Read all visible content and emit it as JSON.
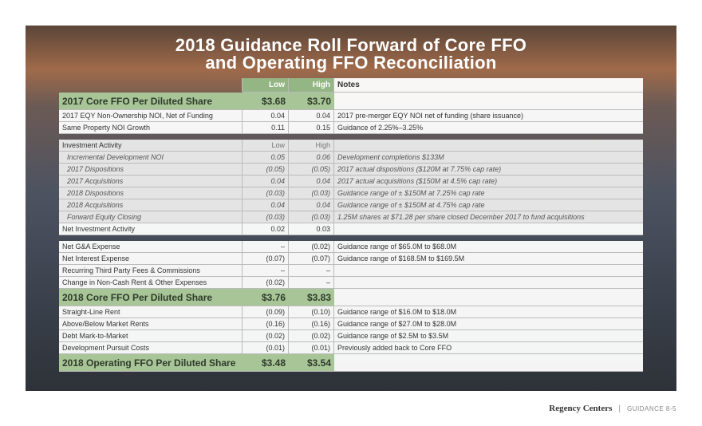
{
  "title_lines": [
    "2018 Guidance Roll Forward of Core FFO",
    "and Operating FFO Reconciliation"
  ],
  "table": {
    "columns": [
      "Low",
      "High",
      "Notes"
    ],
    "groups": [
      [
        {
          "label": "2017 Core FFO Per Diluted Share",
          "low": "$3.68",
          "high": "$3.70"
        },
        {
          "label": "2017 EQY Non-Ownership NOI, Net of Funding",
          "low": "0.04",
          "high": "0.04",
          "notes": "2017 pre-merger EQY NOI net of funding (share issuance)"
        },
        {
          "label": "Same Property NOI Growth",
          "low": "0.11",
          "high": "0.15",
          "notes": "Guidance of 2.25%–3.25%"
        }
      ],
      [
        {
          "label": "Investment Activity",
          "low": "Low",
          "high": "High"
        },
        {
          "label": "Incremental Development NOI",
          "low": "0.05",
          "high": "0.06",
          "notes": "Development completions $133M"
        },
        {
          "label": "2017 Dispositions",
          "low": "(0.05)",
          "high": "(0.05)",
          "notes": "2017 actual dispositions ($120M at 7.75% cap rate)"
        },
        {
          "label": "2017 Acquisitions",
          "low": "0.04",
          "high": "0.04",
          "notes": "2017 actual acquisitions ($150M at 4.5% cap rate)"
        },
        {
          "label": "2018 Dispositions",
          "low": "(0.03)",
          "high": "(0.03)",
          "notes": "Guidance range of ± $150M at 7.25% cap rate"
        },
        {
          "label": "2018 Acquisitions",
          "low": "0.04",
          "high": "0.04",
          "notes": "Guidance range of ± $150M at 4.75% cap rate"
        },
        {
          "label": "Forward Equity Closing",
          "low": "(0.03)",
          "high": "(0.03)",
          "notes": "1.25M shares at $71.28 per share closed December 2017 to fund acquisitions"
        },
        {
          "label": "Net Investment Activity",
          "low": "0.02",
          "high": "0.03"
        }
      ],
      [
        {
          "label": "Net G&A Expense",
          "low": "–",
          "high": "(0.02)",
          "notes": "Guidance range of $65.0M to $68.0M"
        },
        {
          "label": "Net Interest Expense",
          "low": "(0.07)",
          "high": "(0.07)",
          "notes": "Guidance range of $168.5M to $169.5M"
        },
        {
          "label": "Recurring Third Party Fees & Commissions",
          "low": "–",
          "high": "–"
        },
        {
          "label": "Change in Non-Cash Rent & Other Expenses",
          "low": "(0.02)",
          "high": "–"
        },
        {
          "label": "2018 Core FFO Per Diluted Share",
          "low": "$3.76",
          "high": "$3.83"
        },
        {
          "label": "Straight-Line Rent",
          "low": "(0.09)",
          "high": "(0.10)",
          "notes": "Guidance range of $16.0M to $18.0M"
        },
        {
          "label": "Above/Below Market Rents",
          "low": "(0.16)",
          "high": "(0.16)",
          "notes": "Guidance range of $27.0M to $28.0M"
        },
        {
          "label": "Debt Mark-to-Market",
          "low": "(0.02)",
          "high": "(0.02)",
          "notes": "Guidance range of $2.5M to $3.5M"
        },
        {
          "label": "Development Pursuit Costs",
          "low": "(0.01)",
          "high": "(0.01)",
          "notes": "Previously added back to Core FFO"
        },
        {
          "label": "2018 Operating FFO Per Diluted Share",
          "low": "$3.48",
          "high": "$3.54"
        }
      ]
    ]
  },
  "footer": {
    "brand": "Regency Centers",
    "page": "GUIDANCE 8-5"
  }
}
